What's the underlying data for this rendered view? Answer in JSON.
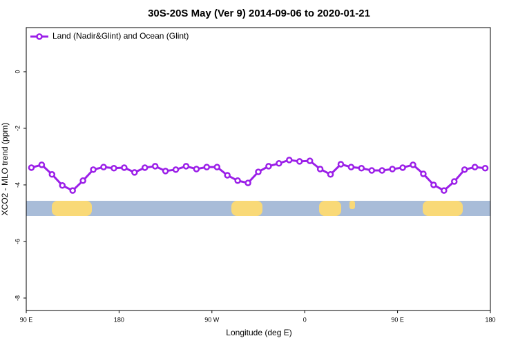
{
  "chart_data": {
    "type": "line",
    "title": "30S-20S May (Ver 9)   2014-09-06 to 2020-01-21",
    "x_label": "Longitude (deg E)",
    "y_label": "XCO2 - MLO trend (ppm)",
    "x": [
      95,
      105,
      115,
      125,
      135,
      145,
      155,
      165,
      175,
      185,
      195,
      205,
      215,
      225,
      235,
      245,
      255,
      265,
      275,
      285,
      295,
      305,
      315,
      325,
      335,
      345,
      355,
      365,
      375,
      385,
      395,
      405,
      415,
      425,
      435,
      445,
      455,
      465,
      475,
      485,
      495,
      505,
      515,
      525,
      535
    ],
    "series": [
      {
        "name": "Land (Nadir&Glint) and Ocean (Glint)",
        "color": "#9b1fe8",
        "values": [
          -3.39,
          -3.29,
          -3.63,
          -4.02,
          -4.2,
          -3.85,
          -3.46,
          -3.37,
          -3.41,
          -3.39,
          -3.56,
          -3.39,
          -3.34,
          -3.51,
          -3.46,
          -3.34,
          -3.44,
          -3.37,
          -3.37,
          -3.66,
          -3.85,
          -3.93,
          -3.54,
          -3.34,
          -3.24,
          -3.12,
          -3.17,
          -3.15,
          -3.44,
          -3.63,
          -3.27,
          -3.37,
          -3.41,
          -3.49,
          -3.49,
          -3.44,
          -3.39,
          -3.29,
          -3.61,
          -4.0,
          -4.2,
          -3.88,
          -3.46,
          -3.37,
          -3.41
        ]
      }
    ],
    "xlim": [
      90,
      540
    ],
    "xticks": [
      {
        "value": 90,
        "label": "90 E"
      },
      180,
      {
        "value": 270,
        "label": "90 W"
      },
      {
        "value": 360,
        "label": "0"
      },
      {
        "value": 450,
        "label": "90 E"
      },
      {
        "value": 540,
        "label": "180"
      }
    ],
    "ylim": [
      -8.44,
      1.56
    ],
    "yticks": [
      0,
      -2,
      -4,
      -6,
      -8
    ],
    "legend": "top-left"
  }
}
